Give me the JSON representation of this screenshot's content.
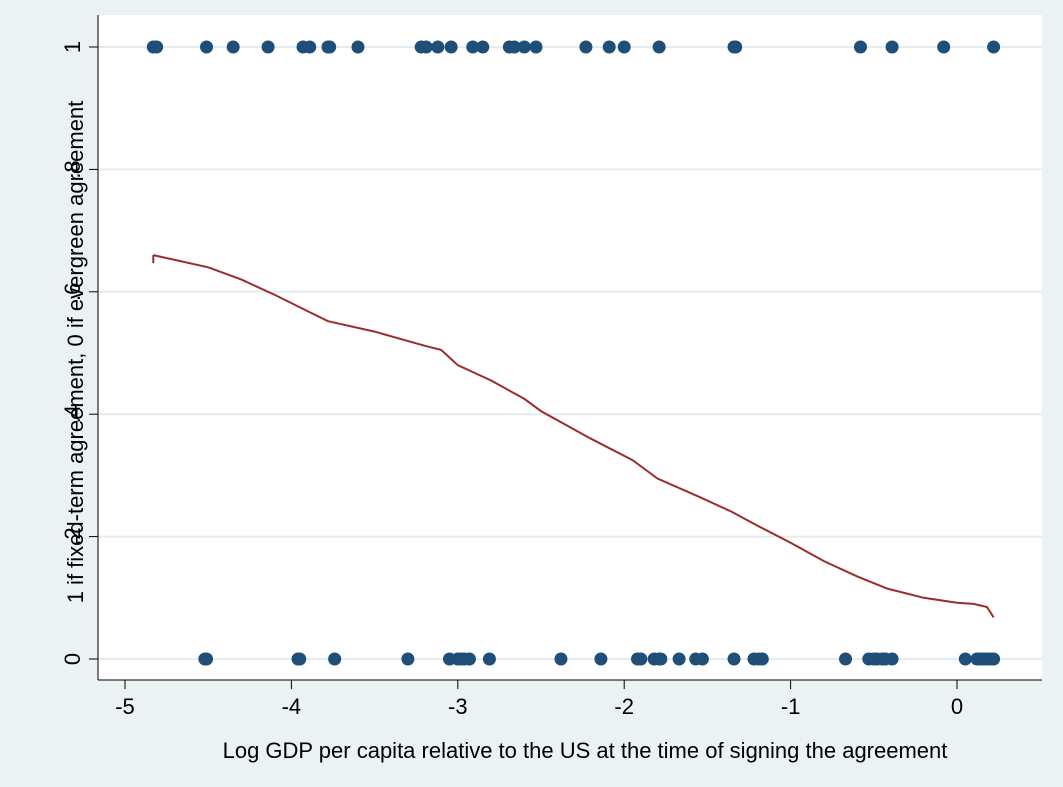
{
  "chart_data": {
    "type": "scatter",
    "xlabel": "Log GDP per capita relative to the US at the time of signing the agreement",
    "ylabel": "1 if fixed-term agreement, 0 if evergreen agreement",
    "xlim": [
      -5.1,
      0.32
    ],
    "ylim": [
      -0.01,
      1.0
    ],
    "x_ticks": [
      -5,
      -4,
      -3,
      -2,
      -1,
      0
    ],
    "x_tick_labels": [
      "-5",
      "-4",
      "-3",
      "-2",
      "-1",
      "0"
    ],
    "y_ticks": [
      0,
      0.2,
      0.4,
      0.6,
      0.8,
      1
    ],
    "y_tick_labels": [
      "0",
      ".2",
      ".4",
      ".6",
      ".8",
      "1"
    ],
    "grid": true,
    "legend": "none",
    "colors": {
      "points": "#1f4e79",
      "fit_line": "#9b2c2c",
      "background": "#eaf2f3",
      "plot_area": "#ffffff",
      "grid": "#e3ecee"
    },
    "points_y1": [
      -4.83,
      -4.81,
      -4.51,
      -4.35,
      -4.14,
      -3.93,
      -3.89,
      -3.78,
      -3.77,
      -3.6,
      -3.22,
      -3.19,
      -3.12,
      -3.04,
      -2.91,
      -2.85,
      -2.69,
      -2.66,
      -2.6,
      -2.53,
      -2.23,
      -2.09,
      -2.0,
      -1.79,
      -1.34,
      -1.33,
      -0.58,
      -0.39,
      -0.08,
      0.22
    ],
    "points_y0": [
      -4.52,
      -4.51,
      -3.96,
      -3.95,
      -3.74,
      -3.3,
      -3.05,
      -3.0,
      -2.98,
      -2.96,
      -2.93,
      -2.81,
      -2.38,
      -2.14,
      -1.92,
      -1.9,
      -1.82,
      -1.79,
      -1.78,
      -1.67,
      -1.57,
      -1.53,
      -1.34,
      -1.22,
      -1.19,
      -1.17,
      -0.67,
      -0.53,
      -0.5,
      -0.48,
      -0.45,
      -0.43,
      -0.39,
      0.05,
      0.12,
      0.14,
      0.16,
      0.18,
      0.2,
      0.22
    ],
    "fit_line": {
      "x": [
        -4.83,
        -4.5,
        -4.3,
        -4.1,
        -3.9,
        -3.78,
        -3.5,
        -3.2,
        -3.1,
        -3.0,
        -2.8,
        -2.6,
        -2.5,
        -2.2,
        -1.95,
        -1.8,
        -1.55,
        -1.35,
        -1.2,
        -1.0,
        -0.8,
        -0.6,
        -0.42,
        -0.2,
        0.0,
        0.1,
        0.18,
        0.22
      ],
      "y": [
        0.66,
        0.64,
        0.62,
        0.595,
        0.568,
        0.552,
        0.535,
        0.512,
        0.505,
        0.48,
        0.455,
        0.425,
        0.405,
        0.36,
        0.325,
        0.295,
        0.265,
        0.24,
        0.218,
        0.19,
        0.16,
        0.135,
        0.115,
        0.1,
        0.092,
        0.09,
        0.085,
        0.068
      ]
    }
  }
}
